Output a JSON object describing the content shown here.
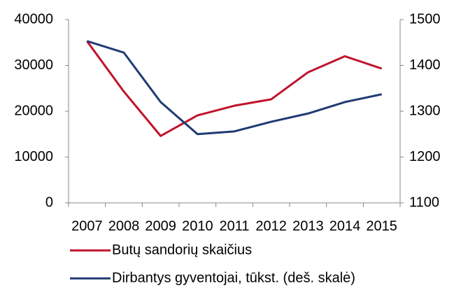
{
  "chart_data": {
    "type": "line",
    "categories": [
      "2007",
      "2008",
      "2009",
      "2010",
      "2011",
      "2012",
      "2013",
      "2014",
      "2015"
    ],
    "series": [
      {
        "name": "Butų sandorių skaičius",
        "color": "#c0142c",
        "values": [
          35300,
          24300,
          14600,
          19100,
          21200,
          22600,
          28500,
          32000,
          29300
        ]
      },
      {
        "name": "Dirbantys gyventojai, tūkst. (deš. skalė)",
        "color": "#1f3b73",
        "axis": "y2",
        "values": [
          1453,
          1428,
          1320,
          1250,
          1256,
          1277,
          1295,
          1320,
          1337
        ]
      }
    ],
    "ylim": [
      0,
      40000
    ],
    "yticks": [
      0,
      10000,
      20000,
      30000,
      40000
    ],
    "y2lim": [
      1100,
      1500
    ],
    "y2ticks": [
      1100,
      1200,
      1300,
      1400,
      1500
    ],
    "legend": "bottom"
  }
}
